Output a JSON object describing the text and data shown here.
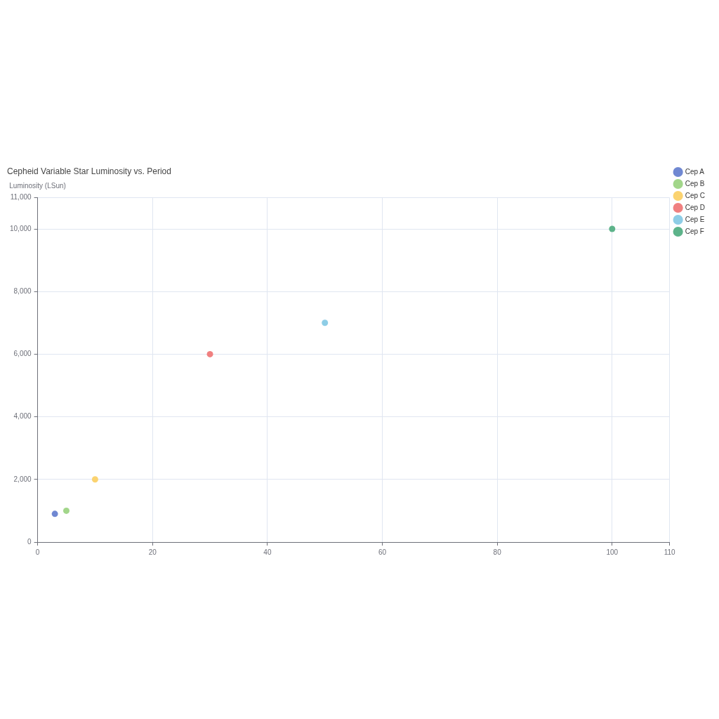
{
  "chart_data": {
    "type": "scatter",
    "title": "Cepheid Variable Star Luminosity vs. Period",
    "ylabel": "Luminosity (LSun)",
    "series": [
      {
        "name": "Cep A",
        "color": "#7088d2",
        "x": [
          3
        ],
        "values": [
          900
        ]
      },
      {
        "name": "Cep B",
        "color": "#a2d68a",
        "x": [
          5
        ],
        "values": [
          1000
        ]
      },
      {
        "name": "Cep C",
        "color": "#fbd370",
        "x": [
          10
        ],
        "values": [
          2000
        ]
      },
      {
        "name": "Cep D",
        "color": "#f08080",
        "x": [
          30
        ],
        "values": [
          6000
        ]
      },
      {
        "name": "Cep E",
        "color": "#8ecde6",
        "x": [
          50
        ],
        "values": [
          7000
        ]
      },
      {
        "name": "Cep F",
        "color": "#5db38a",
        "x": [
          100
        ],
        "values": [
          10000
        ]
      }
    ],
    "xlim": [
      0,
      110
    ],
    "xticks": [
      0,
      20,
      40,
      60,
      80,
      100,
      110
    ],
    "ylim": [
      0,
      11000
    ],
    "yticks": [
      0,
      {
        "value": 2000,
        "label": "2,000"
      },
      {
        "value": 4000,
        "label": "4,000"
      },
      {
        "value": 6000,
        "label": "6,000"
      },
      {
        "value": 8000,
        "label": "8,000"
      },
      {
        "value": 10000,
        "label": "10,000"
      },
      {
        "value": 11000,
        "label": "11,000"
      }
    ],
    "grid": true,
    "legend": "top right",
    "marker": "circle"
  }
}
